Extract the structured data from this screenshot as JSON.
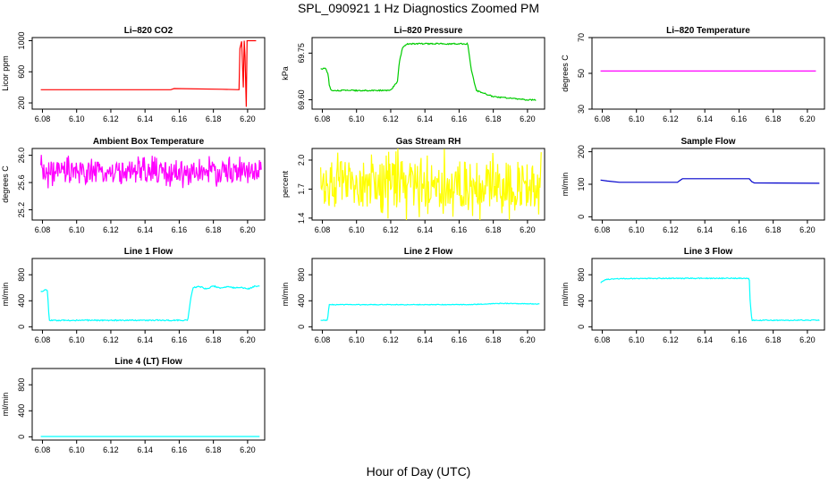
{
  "figure": {
    "title": "SPL_090921  1 Hz Diagnostics Zoomed PM",
    "xlabel": "Hour of Day (UTC)"
  },
  "chart_data": [
    {
      "type": "line",
      "title": "Li–820 CO2",
      "ylabel": "Licor ppm",
      "color": "#ff0000",
      "xlim": [
        6.074,
        6.21
      ],
      "ylim": [
        120,
        1040
      ],
      "xticks": [
        6.08,
        6.1,
        6.12,
        6.14,
        6.16,
        6.18,
        6.2
      ],
      "xtick_labels": [
        "6.08",
        "6.10",
        "6.12",
        "6.14",
        "6.16",
        "6.18",
        "6.20"
      ],
      "yticks": [
        200,
        600,
        1000
      ],
      "ytick_labels": [
        "200",
        "600",
        "1000"
      ],
      "x": [
        6.079,
        6.155,
        6.157,
        6.185,
        6.195,
        6.1955,
        6.1965,
        6.1975,
        6.198,
        6.1985,
        6.1992,
        6.1997,
        6.2005,
        6.205
      ],
      "y": [
        370,
        370,
        385,
        375,
        370,
        900,
        990,
        400,
        1000,
        800,
        150,
        1000,
        1000,
        1000
      ]
    },
    {
      "type": "line",
      "title": "Li–820 Pressure",
      "ylabel": "kPa",
      "color": "#00cc00",
      "xlim": [
        6.074,
        6.21
      ],
      "ylim": [
        69.57,
        69.8
      ],
      "xticks": [
        6.08,
        6.1,
        6.12,
        6.14,
        6.16,
        6.18,
        6.2
      ],
      "xtick_labels": [
        "6.08",
        "6.10",
        "6.12",
        "6.14",
        "6.16",
        "6.18",
        "6.20"
      ],
      "yticks": [
        69.6,
        69.75
      ],
      "ytick_labels": [
        "69.60",
        "69.75"
      ],
      "x": [
        6.079,
        6.082,
        6.0835,
        6.084,
        6.085,
        6.086,
        6.1,
        6.12,
        6.124,
        6.125,
        6.127,
        6.13,
        6.15,
        6.165,
        6.167,
        6.17,
        6.18,
        6.2,
        6.205
      ],
      "y": [
        69.7,
        69.7,
        69.68,
        69.65,
        69.63,
        69.63,
        69.63,
        69.63,
        69.66,
        69.72,
        69.77,
        69.78,
        69.78,
        69.78,
        69.7,
        69.63,
        69.61,
        69.6,
        69.6
      ]
    },
    {
      "type": "line",
      "title": "Li–820 Temperature",
      "ylabel": "degrees C",
      "color": "#ff00ff",
      "xlim": [
        6.074,
        6.21
      ],
      "ylim": [
        30,
        70
      ],
      "xticks": [
        6.08,
        6.1,
        6.12,
        6.14,
        6.16,
        6.18,
        6.2
      ],
      "xtick_labels": [
        "6.08",
        "6.10",
        "6.12",
        "6.14",
        "6.16",
        "6.18",
        "6.20"
      ],
      "yticks": [
        30,
        50,
        70
      ],
      "ytick_labels": [
        "30",
        "50",
        "70"
      ],
      "x": [
        6.079,
        6.205
      ],
      "y": [
        51.3,
        51.3
      ]
    },
    {
      "type": "line",
      "title": "Ambient Box Temperature",
      "ylabel": "degrees C",
      "color": "#ff00ff",
      "xlim": [
        6.074,
        6.21
      ],
      "ylim": [
        25.05,
        26.1
      ],
      "xticks": [
        6.08,
        6.1,
        6.12,
        6.14,
        6.16,
        6.18,
        6.2
      ],
      "xtick_labels": [
        "6.08",
        "6.10",
        "6.12",
        "6.14",
        "6.16",
        "6.18",
        "6.20"
      ],
      "yticks": [
        25.2,
        25.6,
        26.0
      ],
      "ytick_labels": [
        "25.2",
        "25.6",
        "26.0"
      ],
      "x": [
        6.079,
        6.208
      ],
      "y": [
        25.75,
        25.75
      ]
    },
    {
      "type": "line",
      "title": "Gas Stream RH",
      "ylabel": "percent",
      "color": "#ffff00",
      "xlim": [
        6.074,
        6.21
      ],
      "ylim": [
        1.38,
        2.12
      ],
      "xticks": [
        6.08,
        6.1,
        6.12,
        6.14,
        6.16,
        6.18,
        6.2
      ],
      "xtick_labels": [
        "6.08",
        "6.10",
        "6.12",
        "6.14",
        "6.16",
        "6.18",
        "6.20"
      ],
      "yticks": [
        1.4,
        1.7,
        2.0
      ],
      "ytick_labels": [
        "1.4",
        "1.7",
        "2.0"
      ],
      "x": [
        6.079,
        6.208
      ],
      "y": [
        1.75,
        1.75
      ]
    },
    {
      "type": "line",
      "title": "Sample Flow",
      "ylabel": "ml/min",
      "color": "#0000cc",
      "xlim": [
        6.074,
        6.21
      ],
      "ylim": [
        -10,
        210
      ],
      "xticks": [
        6.08,
        6.1,
        6.12,
        6.14,
        6.16,
        6.18,
        6.2
      ],
      "xtick_labels": [
        "6.08",
        "6.10",
        "6.12",
        "6.14",
        "6.16",
        "6.18",
        "6.20"
      ],
      "yticks": [
        0,
        100,
        200
      ],
      "ytick_labels": [
        "0",
        "100",
        "200"
      ],
      "x": [
        6.079,
        6.083,
        6.09,
        6.124,
        6.1255,
        6.127,
        6.16,
        6.166,
        6.1675,
        6.169,
        6.207
      ],
      "y": [
        113,
        110,
        106,
        106,
        112,
        117,
        117,
        117,
        108,
        104,
        103
      ]
    },
    {
      "type": "line",
      "title": "Line 1 Flow",
      "ylabel": "ml/min",
      "color": "#00ffff",
      "xlim": [
        6.074,
        6.21
      ],
      "ylim": [
        -50,
        1050
      ],
      "xticks": [
        6.08,
        6.1,
        6.12,
        6.14,
        6.16,
        6.18,
        6.2
      ],
      "xtick_labels": [
        "6.08",
        "6.10",
        "6.12",
        "6.14",
        "6.16",
        "6.18",
        "6.20"
      ],
      "yticks": [
        0,
        400,
        800
      ],
      "ytick_labels": [
        "0",
        "400",
        "800"
      ],
      "x": [
        6.079,
        6.082,
        6.083,
        6.0835,
        6.084,
        6.1,
        6.12,
        6.14,
        6.165,
        6.1665,
        6.168,
        6.172,
        6.176,
        6.18,
        6.184,
        6.188,
        6.192,
        6.196,
        6.2,
        6.204,
        6.207
      ],
      "y": [
        540,
        570,
        560,
        300,
        100,
        100,
        100,
        100,
        100,
        400,
        600,
        620,
        580,
        630,
        590,
        620,
        600,
        610,
        580,
        620,
        620
      ]
    },
    {
      "type": "line",
      "title": "Line 2 Flow",
      "ylabel": "ml/min",
      "color": "#00ffff",
      "xlim": [
        6.074,
        6.21
      ],
      "ylim": [
        -50,
        1050
      ],
      "xticks": [
        6.08,
        6.1,
        6.12,
        6.14,
        6.16,
        6.18,
        6.2
      ],
      "xtick_labels": [
        "6.08",
        "6.10",
        "6.12",
        "6.14",
        "6.16",
        "6.18",
        "6.20"
      ],
      "yticks": [
        0,
        400,
        800
      ],
      "ytick_labels": [
        "0",
        "400",
        "800"
      ],
      "x": [
        6.079,
        6.083,
        6.084,
        6.1,
        6.12,
        6.14,
        6.165,
        6.175,
        6.185,
        6.195,
        6.207
      ],
      "y": [
        100,
        100,
        340,
        340,
        340,
        340,
        340,
        350,
        360,
        355,
        350
      ]
    },
    {
      "type": "line",
      "title": "Line 3 Flow",
      "ylabel": "ml/min",
      "color": "#00ffff",
      "xlim": [
        6.074,
        6.21
      ],
      "ylim": [
        -50,
        1050
      ],
      "xticks": [
        6.08,
        6.1,
        6.12,
        6.14,
        6.16,
        6.18,
        6.2
      ],
      "xtick_labels": [
        "6.08",
        "6.10",
        "6.12",
        "6.14",
        "6.16",
        "6.18",
        "6.20"
      ],
      "yticks": [
        0,
        400,
        800
      ],
      "ytick_labels": [
        "0",
        "400",
        "800"
      ],
      "x": [
        6.079,
        6.082,
        6.09,
        6.12,
        6.15,
        6.166,
        6.1665,
        6.1675,
        6.19,
        6.207
      ],
      "y": [
        680,
        730,
        740,
        745,
        745,
        745,
        400,
        100,
        100,
        100
      ]
    },
    {
      "type": "line",
      "title": "Line 4 (LT) Flow",
      "ylabel": "ml/min",
      "color": "#00ffff",
      "xlim": [
        6.074,
        6.21
      ],
      "ylim": [
        -50,
        1050
      ],
      "xticks": [
        6.08,
        6.1,
        6.12,
        6.14,
        6.16,
        6.18,
        6.2
      ],
      "xtick_labels": [
        "6.08",
        "6.10",
        "6.12",
        "6.14",
        "6.16",
        "6.18",
        "6.20"
      ],
      "yticks": [
        0,
        400,
        800
      ],
      "ytick_labels": [
        "0",
        "400",
        "800"
      ],
      "x": [
        6.079,
        6.207
      ],
      "y": [
        5,
        5
      ]
    }
  ]
}
